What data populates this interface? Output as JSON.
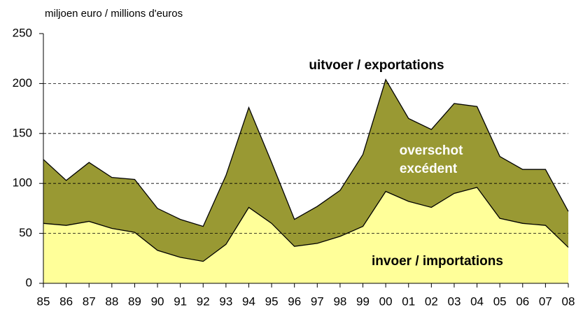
{
  "chart_data": {
    "type": "area",
    "y_axis_label": "miljoen euro / millions d'euros",
    "categories": [
      "85",
      "86",
      "87",
      "88",
      "89",
      "90",
      "91",
      "92",
      "93",
      "94",
      "95",
      "96",
      "97",
      "98",
      "99",
      "00",
      "01",
      "02",
      "03",
      "04",
      "05",
      "06",
      "07",
      "08"
    ],
    "series": [
      {
        "name": "uitvoer / exportations",
        "color": "#999933",
        "values": [
          124,
          103,
          121,
          106,
          104,
          75,
          64,
          57,
          108,
          176,
          121,
          64,
          77,
          93,
          129,
          204,
          165,
          154,
          180,
          177,
          127,
          114,
          114,
          72
        ]
      },
      {
        "name": "invoer / importations",
        "color": "#ffff99",
        "values": [
          60,
          58,
          62,
          55,
          51,
          33,
          26,
          22,
          39,
          76,
          60,
          37,
          40,
          47,
          57,
          92,
          82,
          76,
          90,
          96,
          65,
          60,
          58,
          36
        ]
      }
    ],
    "annotations": [
      "overschot",
      "excédent"
    ],
    "ylim": [
      0,
      250
    ],
    "yticks": [
      0,
      50,
      100,
      150,
      200,
      250
    ],
    "grid": true
  }
}
